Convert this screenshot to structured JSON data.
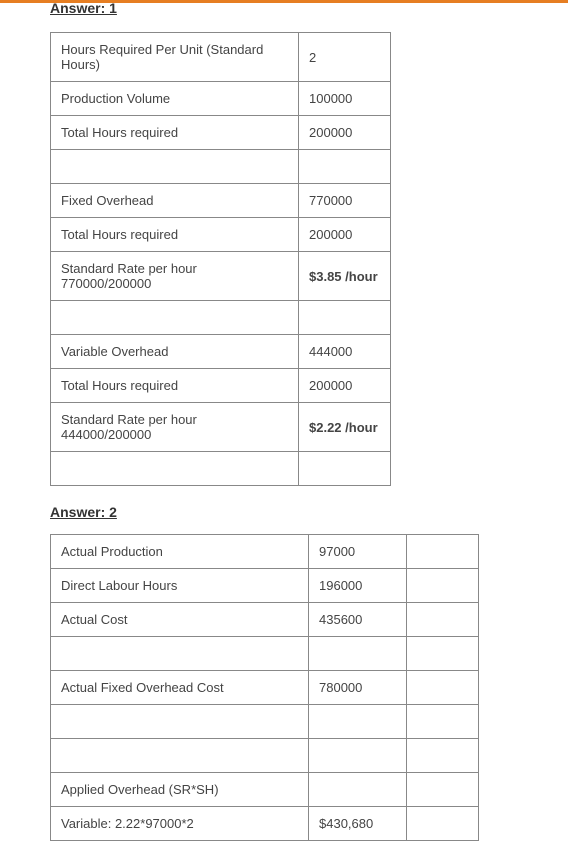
{
  "answer1_heading": "Answer: 1",
  "answer2_heading": "Answer: 2",
  "table1": {
    "rows": [
      {
        "label": "Hours Required Per Unit (Standard Hours)",
        "value": "2",
        "bold": false
      },
      {
        "label": "Production Volume",
        "value": "100000",
        "bold": false
      },
      {
        "label": "Total Hours required",
        "value": "200000",
        "bold": false
      },
      {
        "label": "",
        "value": "",
        "bold": false
      },
      {
        "label": "Fixed Overhead",
        "value": "770000",
        "bold": false
      },
      {
        "label": "Total Hours required",
        "value": "200000",
        "bold": false
      },
      {
        "label": "Standard Rate per hour 770000/200000",
        "value": "$3.85 /hour",
        "bold": true
      },
      {
        "label": "",
        "value": "",
        "bold": false
      },
      {
        "label": "Variable Overhead",
        "value": "444000",
        "bold": false
      },
      {
        "label": "Total Hours required",
        "value": "200000",
        "bold": false
      },
      {
        "label": "Standard Rate per hour 444000/200000",
        "value": "$2.22 /hour",
        "bold": true
      },
      {
        "label": "",
        "value": "",
        "bold": false
      }
    ]
  },
  "table2": {
    "rows": [
      {
        "label": "Actual Production",
        "value": "97000",
        "col3": ""
      },
      {
        "label": "Direct Labour Hours",
        "value": "196000",
        "col3": ""
      },
      {
        "label": "Actual Cost",
        "value": "435600",
        "col3": ""
      },
      {
        "label": "",
        "value": "",
        "col3": ""
      },
      {
        "label": "Actual Fixed Overhead Cost",
        "value": "780000",
        "col3": ""
      },
      {
        "label": "",
        "value": "",
        "col3": ""
      },
      {
        "label": "",
        "value": "",
        "col3": ""
      },
      {
        "label": "Applied Overhead (SR*SH)",
        "value": "",
        "col3": ""
      },
      {
        "label": "Variable: 2.22*97000*2",
        "value": "$430,680",
        "col3": ""
      }
    ]
  },
  "colors": {
    "orange_bar": "#e67e22",
    "text": "#444444",
    "border": "#888888",
    "background": "#ffffff"
  }
}
